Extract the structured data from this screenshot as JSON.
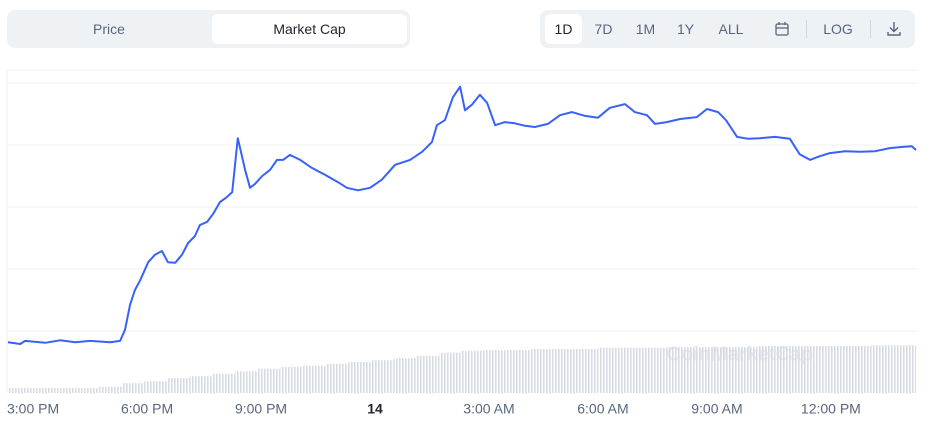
{
  "tabs": [
    "Price",
    "Market Cap"
  ],
  "ranges": [
    "1D",
    "7D",
    "1M",
    "1Y",
    "ALL"
  ],
  "log_label": "LOG",
  "chart_data": {
    "type": "line",
    "watermark": "CoinMarketCap",
    "color": "#3861fb",
    "x": [
      -0.66,
      -0.34,
      -0.21,
      0.32,
      0.71,
      1.11,
      1.5,
      2.03,
      2.29,
      2.42,
      2.55,
      2.68,
      2.82,
      3.03,
      3.21,
      3.39,
      3.55,
      3.74,
      3.92,
      4.08,
      4.26,
      4.39,
      4.58,
      4.74,
      4.92,
      5.08,
      5.24,
      5.39,
      5.58,
      5.71,
      5.84,
      6.03,
      6.24,
      6.42,
      6.58,
      6.76,
      7.03,
      7.34,
      7.68,
      8.03,
      8.26,
      8.55,
      8.87,
      9.18,
      9.53,
      9.92,
      10.24,
      10.5,
      10.63,
      10.84,
      11.05,
      11.24,
      11.37,
      11.55,
      11.76,
      11.95,
      12.16,
      12.42,
      12.68,
      12.95,
      13.21,
      13.55,
      13.87,
      14.18,
      14.53,
      14.87,
      15.18,
      15.58,
      15.84,
      16.16,
      16.37,
      16.68,
      17.03,
      17.47,
      17.74,
      18.03,
      18.24,
      18.53,
      18.82,
      19.13,
      19.53,
      19.92,
      20.18,
      20.45,
      20.66,
      20.97,
      21.37,
      21.76,
      22.16,
      22.55,
      22.89,
      23.13,
      23.24
    ],
    "values": [
      0.82,
      0.79,
      0.84,
      0.81,
      0.85,
      0.82,
      0.84,
      0.82,
      0.84,
      1.02,
      1.42,
      1.66,
      1.82,
      2.11,
      2.23,
      2.29,
      2.11,
      2.1,
      2.23,
      2.42,
      2.53,
      2.71,
      2.76,
      2.89,
      3.08,
      3.15,
      3.24,
      4.11,
      3.6,
      3.31,
      3.37,
      3.5,
      3.6,
      3.76,
      3.76,
      3.84,
      3.76,
      3.63,
      3.52,
      3.4,
      3.31,
      3.27,
      3.31,
      3.44,
      3.68,
      3.76,
      3.89,
      4.05,
      4.32,
      4.4,
      4.77,
      4.94,
      4.56,
      4.65,
      4.81,
      4.68,
      4.32,
      4.37,
      4.35,
      4.31,
      4.29,
      4.34,
      4.48,
      4.53,
      4.47,
      4.44,
      4.6,
      4.66,
      4.53,
      4.48,
      4.34,
      4.37,
      4.42,
      4.45,
      4.58,
      4.53,
      4.4,
      4.13,
      4.1,
      4.11,
      4.13,
      4.1,
      3.85,
      3.76,
      3.81,
      3.87,
      3.9,
      3.89,
      3.9,
      3.95,
      3.97,
      3.98,
      3.92
    ],
    "volume": {
      "color": "#d6dae2",
      "values": [
        0.08,
        0.08,
        0.08,
        0.08,
        0.1,
        0.16,
        0.19,
        0.24,
        0.27,
        0.31,
        0.35,
        0.39,
        0.42,
        0.44,
        0.47,
        0.5,
        0.53,
        0.56,
        0.6,
        0.65,
        0.68,
        0.69,
        0.69,
        0.71,
        0.71,
        0.71,
        0.73,
        0.73,
        0.73,
        0.74,
        0.74,
        0.74,
        0.74,
        0.76,
        0.76,
        0.76,
        0.76,
        0.76,
        0.77,
        0.77
      ]
    },
    "xlim": [
      -0.66,
      23.24
    ],
    "xticks": [
      {
        "value": 0,
        "label": "3:00 PM"
      },
      {
        "value": 3,
        "label": "6:00 PM"
      },
      {
        "value": 6,
        "label": "9:00 PM"
      },
      {
        "value": 9,
        "label": "14"
      },
      {
        "value": 12,
        "label": "3:00 AM"
      },
      {
        "value": 15,
        "label": "6:00 AM"
      },
      {
        "value": 18,
        "label": "9:00 AM"
      },
      {
        "value": 21,
        "label": "12:00 PM"
      }
    ],
    "ylim": [
      0,
      5
    ],
    "yticks": [
      1,
      2,
      3,
      4,
      5
    ],
    "grid": true
  }
}
